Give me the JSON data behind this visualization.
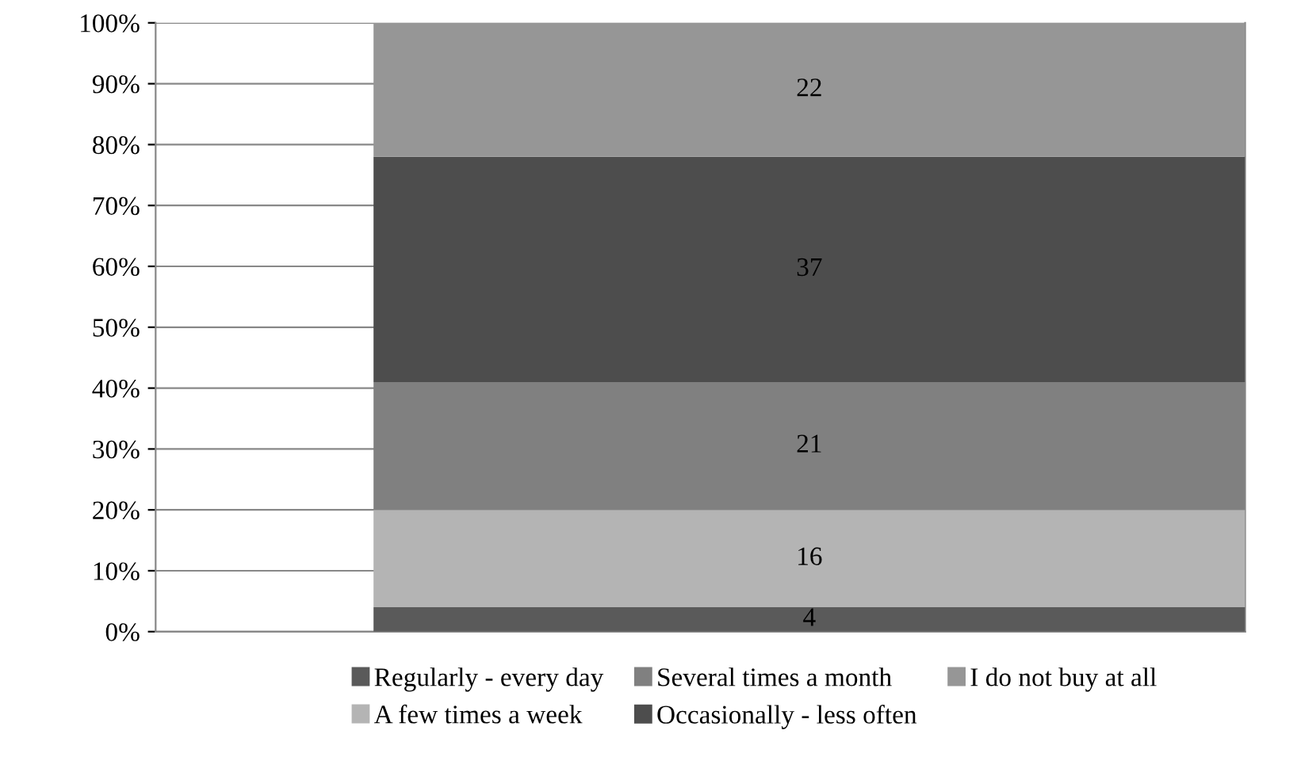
{
  "chart_data": {
    "type": "bar",
    "stacked": true,
    "categories": [
      null
    ],
    "series": [
      {
        "name": "Regularly - every day",
        "color": "#5a5a5a",
        "values": [
          4
        ]
      },
      {
        "name": "A few times a week",
        "color": "#b4b4b4",
        "values": [
          16
        ]
      },
      {
        "name": "Several times a month",
        "color": "#808080",
        "values": [
          21
        ]
      },
      {
        "name": "Occasionally - less often",
        "color": "#4d4d4d",
        "values": [
          37
        ]
      },
      {
        "name": "I do not buy at all",
        "color": "#969696",
        "values": [
          22
        ]
      }
    ],
    "ylim": [
      0,
      100
    ],
    "yticks": [
      {
        "value": 0,
        "label": "0%"
      },
      {
        "value": 10,
        "label": "10%"
      },
      {
        "value": 20,
        "label": "20%"
      },
      {
        "value": 30,
        "label": "30%"
      },
      {
        "value": 40,
        "label": "40%"
      },
      {
        "value": 50,
        "label": "50%"
      },
      {
        "value": 60,
        "label": "60%"
      },
      {
        "value": 70,
        "label": "70%"
      },
      {
        "value": 80,
        "label": "80%"
      },
      {
        "value": 90,
        "label": "90%"
      },
      {
        "value": 100,
        "label": "100%"
      }
    ],
    "grid": "y",
    "legend": "bottom",
    "data_labels": true
  }
}
